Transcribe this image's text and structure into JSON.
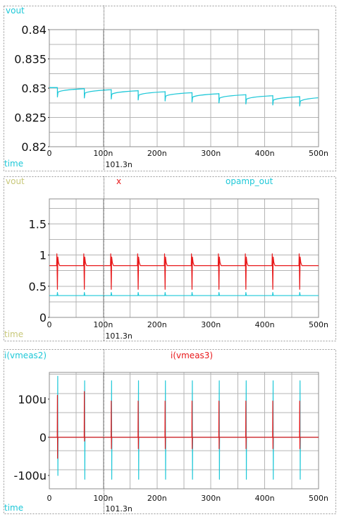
{
  "cursor": {
    "x": 101.3,
    "label": "101.3n"
  },
  "colors": {
    "cyan": "#1ec8d8",
    "red": "#e8181a",
    "olive": "#c8c87a"
  },
  "panels": [
    {
      "top_labels": [
        {
          "text": "vout",
          "color": "#1ec8d8"
        }
      ],
      "bottom_label": {
        "text": "time",
        "color": "#1ec8d8"
      }
    },
    {
      "top_labels": [
        {
          "text": "vout",
          "color": "#c8c87a"
        },
        {
          "text": "x",
          "color": "#e8181a"
        },
        {
          "text": "opamp_out",
          "color": "#1ec8d8"
        }
      ],
      "bottom_label": {
        "text": "time",
        "color": "#c8c87a"
      }
    },
    {
      "top_labels": [
        {
          "text": "i(vmeas2)",
          "color": "#1ec8d8"
        },
        {
          "text": "i(vmeas3)",
          "color": "#e8181a"
        }
      ],
      "bottom_label": {
        "text": "time",
        "color": "#1ec8d8"
      }
    }
  ],
  "chart_data": [
    {
      "type": "line",
      "x_ticks": [
        "0",
        "100n",
        "200n",
        "300n",
        "400n",
        "500n"
      ],
      "y_ticks": [
        "0.82",
        "0.825",
        "0.83",
        "0.835",
        "0.84"
      ],
      "xlim": [
        0,
        500
      ],
      "ylim": [
        0.82,
        0.84
      ],
      "grid": true,
      "series": [
        {
          "name": "vout",
          "color": "#1ec8d8",
          "pulse_times": [
            15,
            65,
            115,
            165,
            215,
            265,
            315,
            365,
            415,
            465
          ],
          "level_start": 0.8301,
          "level_end": 0.8282,
          "spike_to": 0.8282
        }
      ]
    },
    {
      "type": "line",
      "x_ticks": [
        "0",
        "100n",
        "200n",
        "300n",
        "400n",
        "500n"
      ],
      "y_ticks": [
        "0",
        "0.5",
        "1",
        "1.5"
      ],
      "xlim": [
        0,
        500
      ],
      "ylim": [
        0,
        1.9
      ],
      "grid": true,
      "series": [
        {
          "name": "x",
          "color": "#e8181a",
          "level": 0.83,
          "spike_high": 1.02,
          "spike_low": 0.45,
          "pulse_times": [
            15,
            65,
            115,
            165,
            215,
            265,
            315,
            365,
            415,
            465
          ]
        },
        {
          "name": "opamp_out",
          "color": "#1ec8d8",
          "level": 0.35,
          "spike_high": 0.4,
          "pulse_times": [
            15,
            65,
            115,
            165,
            215,
            265,
            315,
            365,
            415,
            465
          ]
        }
      ]
    },
    {
      "type": "line",
      "x_ticks": [
        "0",
        "100n",
        "200n",
        "300n",
        "400n",
        "500n"
      ],
      "y_ticks": [
        "-100u",
        "0",
        "100u"
      ],
      "xlim": [
        0,
        500
      ],
      "ylim": [
        -135,
        170
      ],
      "grid": true,
      "series": [
        {
          "name": "i(vmeas2)",
          "color": "#1ec8d8",
          "level": 0,
          "pulse_times": [
            15,
            65,
            115,
            165,
            215,
            265,
            315,
            365,
            415,
            465
          ],
          "spike_high": [
            160,
            148,
            148,
            148,
            148,
            148,
            148,
            148,
            148,
            148
          ],
          "spike_low": [
            -100,
            -110,
            -110,
            -110,
            -110,
            -110,
            -110,
            -110,
            -110,
            -110
          ]
        },
        {
          "name": "i(vmeas3)",
          "color": "#e8181a",
          "level": 0,
          "pulse_times": [
            15,
            65,
            115,
            165,
            215,
            265,
            315,
            365,
            415,
            465
          ],
          "spike_high": [
            110,
            120,
            95,
            95,
            95,
            95,
            95,
            95,
            95,
            95
          ],
          "spike_low": [
            -55,
            -10,
            -30,
            -30,
            -30,
            -30,
            -30,
            -30,
            -30,
            -30
          ]
        }
      ]
    }
  ]
}
